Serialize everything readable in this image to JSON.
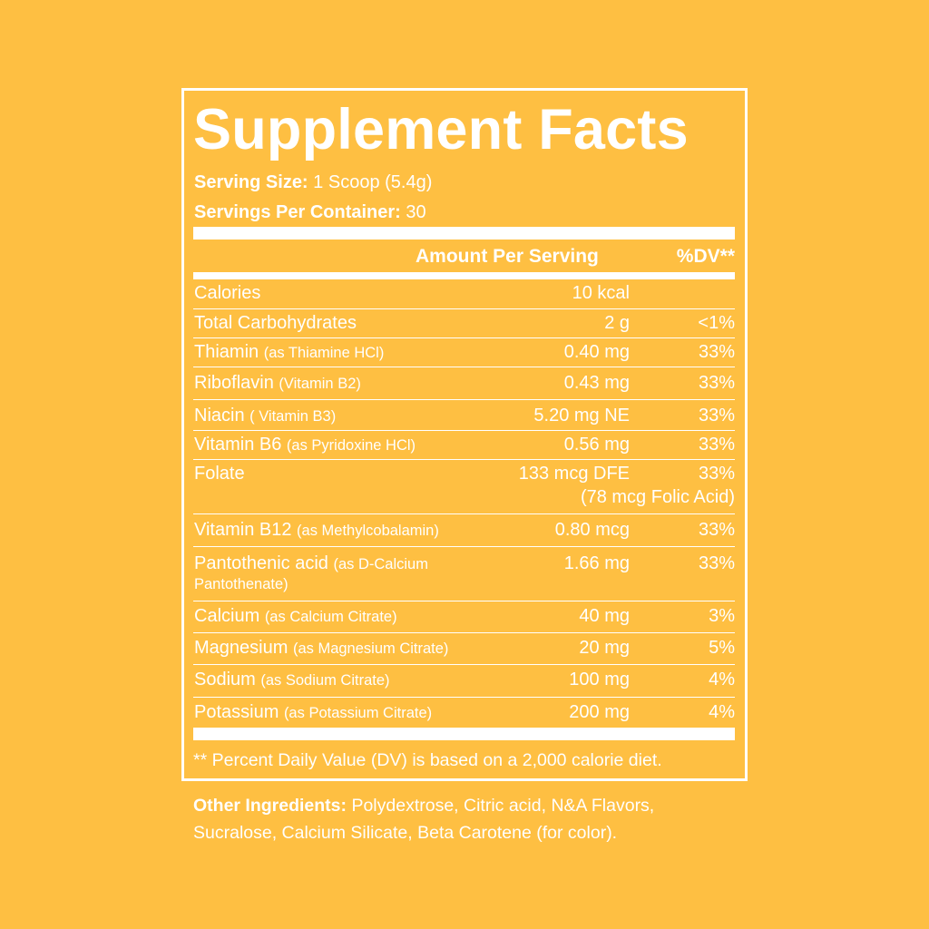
{
  "title": "Supplement Facts",
  "serving_size": {
    "label": "Serving Size:",
    "value": "1 Scoop (5.4g)"
  },
  "servings_per_container": {
    "label": "Servings Per Container:",
    "value": "30"
  },
  "header": {
    "amount": "Amount Per Serving",
    "dv": "%DV**"
  },
  "rows": [
    {
      "name": "Calories",
      "sub": "",
      "amount": "10 kcal",
      "dv": ""
    },
    {
      "name": "Total Carbohydrates",
      "sub": "",
      "amount": "2 g",
      "dv": "<1%"
    },
    {
      "name": "Thiamin",
      "sub": "(as Thiamine HCl)",
      "amount": "0.40 mg",
      "dv": "33%"
    },
    {
      "name": "Riboflavin",
      "sub": "(Vitamin B2)",
      "amount": "0.43 mg",
      "dv": "33%"
    },
    {
      "name": "Niacin",
      "sub": "( Vitamin B3)",
      "amount": "5.20 mg NE",
      "dv": "33%"
    },
    {
      "name": "Vitamin B6",
      "sub": "(as Pyridoxine HCl)",
      "amount": "0.56 mg",
      "dv": "33%"
    },
    {
      "name": "Folate",
      "sub": "",
      "amount": "133 mcg DFE",
      "dv": "33%",
      "extra": "(78 mcg Folic Acid)"
    },
    {
      "name": "Vitamin B12",
      "sub": "(as Methylcobalamin)",
      "amount": "0.80 mcg",
      "dv": "33%"
    },
    {
      "name": "Pantothenic acid",
      "sub": "(as D-Calcium",
      "sub2": "Pantothenate)",
      "amount": "1.66 mg",
      "dv": "33%"
    },
    {
      "name": "Calcium",
      "sub": "(as Calcium Citrate)",
      "amount": "40 mg",
      "dv": "3%"
    },
    {
      "name": "Magnesium",
      "sub": "(as Magnesium Citrate)",
      "amount": "20 mg",
      "dv": "5%"
    },
    {
      "name": "Sodium",
      "sub": "(as Sodium Citrate)",
      "amount": "100 mg",
      "dv": "4%"
    },
    {
      "name": "Potassium",
      "sub": "(as Potassium Citrate)",
      "amount": "200 mg",
      "dv": "4%"
    }
  ],
  "footnote": "** Percent Daily Value (DV) is based on a 2,000 calorie diet.",
  "other_ingredients": {
    "label": "Other Ingredients:",
    "line1": "Polydextrose, Citric acid, N&A Flavors,",
    "line2": "Sucralose, Calcium Silicate, Beta Carotene (for color)."
  },
  "colors": {
    "background": "#FEBF42",
    "text": "#FFFFFF"
  }
}
